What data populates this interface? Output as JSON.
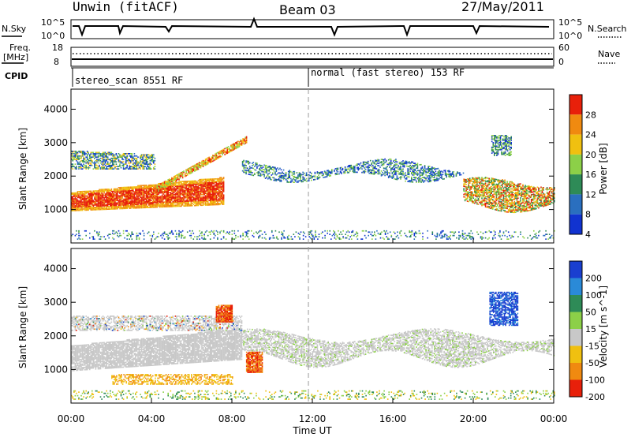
{
  "header": {
    "station": "Unwin (fitACF)",
    "beam": "Beam 03",
    "date": "27/May/2011"
  },
  "strip_labels": {
    "nsky": "N.Sky",
    "nsearch": "N.Search",
    "freq_line1": "Freq.",
    "freq_line2": "[MHz]",
    "nave": "Nave",
    "cpid": "CPID"
  },
  "strip_ticks": {
    "nsky_top": "10^5",
    "nsky_bottom": "10^0",
    "nsearch_top": "10^5",
    "nsearch_bottom": "10^0",
    "freq_top": "18",
    "freq_bottom": "8",
    "nave_top": "60",
    "nave_bottom": "0"
  },
  "cpid": {
    "left": "stereo_scan 8551 RF",
    "right": "normal (fast stereo) 153 RF"
  },
  "chart_data": [
    {
      "type": "heatmap",
      "panel": "power",
      "ylabel": "Slant Range [km]",
      "yticks": [
        "1000",
        "2000",
        "3000",
        "4000"
      ],
      "colorbar_label": "Power [dB]",
      "colorbar_ticks": [
        "4",
        "8",
        "12",
        "16",
        "20",
        "24",
        "28"
      ],
      "colors": [
        "#1133d0",
        "#2a6fbf",
        "#2e8b57",
        "#8cd048",
        "#f0c010",
        "#f08a10",
        "#e8200a"
      ]
    },
    {
      "type": "heatmap",
      "panel": "velocity",
      "ylabel": "Slant Range [km]",
      "yticks": [
        "1000",
        "2000",
        "3000",
        "4000"
      ],
      "colorbar_label": "Velocity [m s^-1]",
      "colorbar_ticks": [
        "200",
        "100",
        "50",
        "15",
        "-15",
        "-50",
        "-100",
        "-200"
      ],
      "colors": [
        "#1a3fd0",
        "#2a8ad8",
        "#2e8b57",
        "#8cd048",
        "#c8c8c8",
        "#f0c010",
        "#f08a10",
        "#e8200a"
      ]
    }
  ],
  "xaxis": {
    "label": "Time UT",
    "ticks": [
      "00:00",
      "04:00",
      "08:00",
      "12:00",
      "16:00",
      "20:00",
      "00:00"
    ]
  }
}
